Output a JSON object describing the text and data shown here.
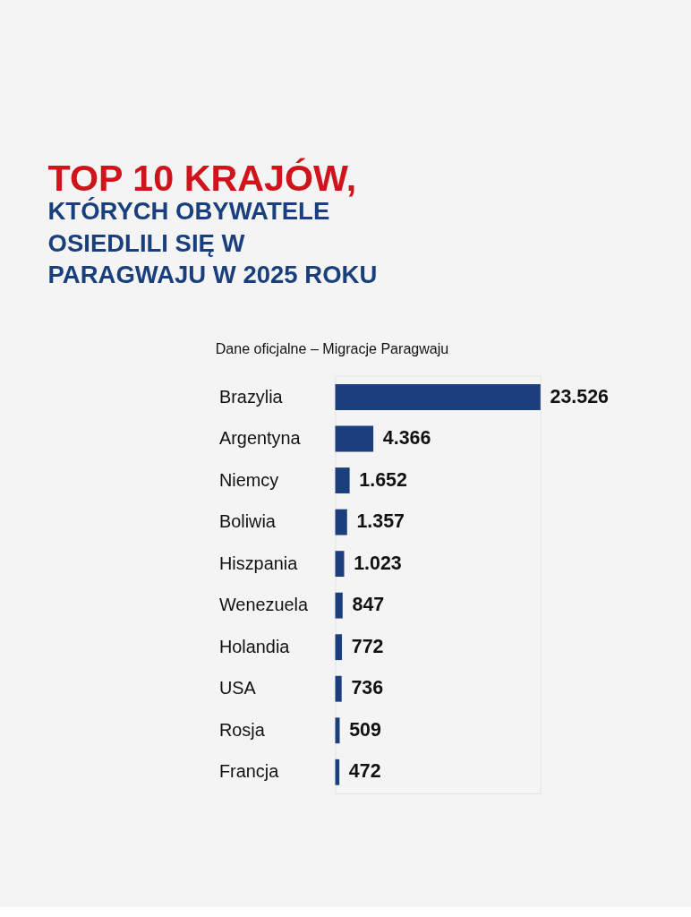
{
  "chart_data": {
    "type": "bar",
    "orientation": "horizontal",
    "title": "TOP 10 KRAJÓW,",
    "subtitle": "KTÓRYCH OBYWATELE OSIEDLILI SIĘ W PARAGWAJU W 2025 ROKU",
    "annotations": [
      "Dane oficjalne – Migracje Paragwaju"
    ],
    "categories": [
      "Brazylia",
      "Argentyna",
      "Niemcy",
      "Boliwia",
      "Hiszpania",
      "Wenezuela",
      "Holandia",
      "USA",
      "Rosja",
      "Francja"
    ],
    "values": [
      23526,
      4366,
      1652,
      1357,
      1023,
      847,
      772,
      736,
      509,
      472
    ],
    "value_labels": [
      "23.526",
      "4.366",
      "1.652",
      "1.357",
      "1.023",
      "847",
      "772",
      "736",
      "509",
      "472"
    ],
    "color": "#1b3f7c"
  }
}
